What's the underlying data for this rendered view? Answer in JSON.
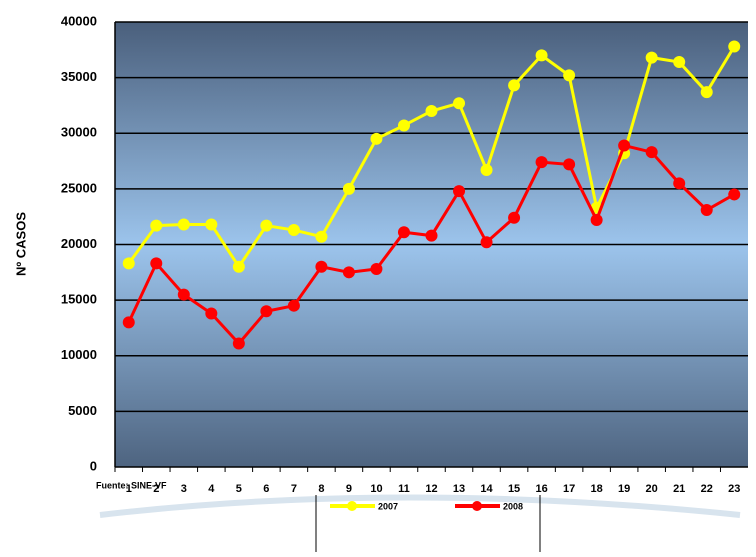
{
  "chart_data": {
    "type": "line",
    "y_label": "Nº CASOS",
    "source": "Fuente: SINE-VF",
    "categories": [
      "1",
      "2",
      "3",
      "4",
      "5",
      "6",
      "7",
      "8",
      "9",
      "10",
      "11",
      "12",
      "13",
      "14",
      "15",
      "16",
      "17",
      "18",
      "19",
      "20",
      "21",
      "22",
      "23"
    ],
    "series": [
      {
        "name": "2007",
        "color": "#ffff00",
        "values": [
          18300,
          21700,
          21800,
          21800,
          18000,
          21700,
          21300,
          20700,
          25000,
          29500,
          30700,
          32000,
          32700,
          26700,
          34300,
          37000,
          35200,
          23300,
          28200,
          36800,
          36400,
          33700,
          37800
        ]
      },
      {
        "name": "2008",
        "color": "#ff0000",
        "values": [
          13000,
          18300,
          15500,
          13800,
          11100,
          14000,
          14500,
          18000,
          17500,
          17800,
          21100,
          20800,
          24800,
          20200,
          22400,
          27400,
          27200,
          22200,
          28900,
          28300,
          25500,
          23100,
          24500
        ]
      }
    ],
    "ylim": [
      0,
      40000
    ],
    "yticks": [
      0,
      5000,
      10000,
      15000,
      20000,
      25000,
      30000,
      35000,
      40000
    ],
    "grid": true
  }
}
